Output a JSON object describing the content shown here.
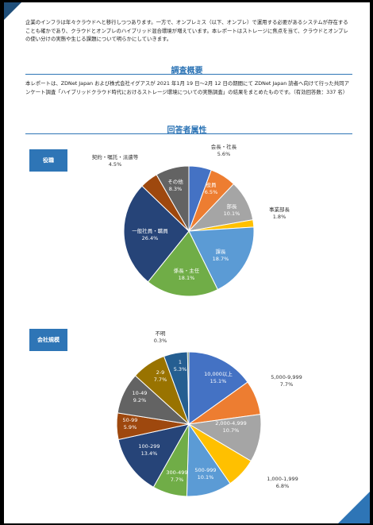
{
  "intro": "企業のインフラは年々クラウドへと移行しつつあります。一方で、オンプレミス（以下、オンプレ）で運用する必要があるシステムが存在することも確かであり、クラウドとオンプレのハイブリッド混合環境が増えています。本レポートはストレージに焦点を当て、クラウドとオンプレの使い分けの実態や生じる課題について明らかにしていきます。",
  "overview": {
    "title": "調査概要",
    "text": "本レポートは、ZDNet Japan および株式会社イグアスが 2021 年1月 19 日〜2月 12 日の期間にて ZDNet Japan 読者へ向けて行った共同アンケート調査「ハイブリッドクラウド時代におけるストレージ環境についての実態調査」の結果をまとめたものです。（有効回答数：337 名）"
  },
  "attributes": {
    "title": "回答者属性"
  },
  "charts": [
    {
      "tag": "役職"
    },
    {
      "tag": "会社規模"
    }
  ],
  "chart_data": [
    {
      "type": "pie",
      "title": "役職",
      "slices": [
        {
          "name": "会長・社長",
          "value": 5.6,
          "label": "5.6%",
          "color": "#4472C4"
        },
        {
          "name": "役員",
          "value": 6.5,
          "label": "6.5%",
          "color": "#ED7D31"
        },
        {
          "name": "部長",
          "value": 10.1,
          "label": "10.1%",
          "color": "#A5A5A5"
        },
        {
          "name": "事業部長",
          "value": 1.8,
          "label": "1.8%",
          "color": "#FFC000"
        },
        {
          "name": "課長",
          "value": 18.7,
          "label": "18.7%",
          "color": "#5B9BD5"
        },
        {
          "name": "係長・主任",
          "value": 18.1,
          "label": "18.1%",
          "color": "#70AD47"
        },
        {
          "name": "一般社員・職員",
          "value": 26.4,
          "label": "26.4%",
          "color": "#264478"
        },
        {
          "name": "契約・嘱託・派遣等",
          "value": 4.5,
          "label": "4.5%",
          "color": "#9E480E"
        },
        {
          "name": "その他",
          "value": 8.3,
          "label": "8.3%",
          "color": "#636363"
        }
      ]
    },
    {
      "type": "pie",
      "title": "会社規模",
      "slices": [
        {
          "name": "10,000以上",
          "value": 15.1,
          "label": "15.1%",
          "color": "#4472C4"
        },
        {
          "name": "5,000-9,999",
          "value": 7.7,
          "label": "7.7%",
          "color": "#ED7D31"
        },
        {
          "name": "2,000-4,999",
          "value": 10.7,
          "label": "10.7%",
          "color": "#A5A5A5"
        },
        {
          "name": "1,000-1,999",
          "value": 6.8,
          "label": "6.8%",
          "color": "#FFC000"
        },
        {
          "name": "500-999",
          "value": 10.1,
          "label": "10.1%",
          "color": "#5B9BD5"
        },
        {
          "name": "300-499",
          "value": 7.7,
          "label": "7.7%",
          "color": "#70AD47"
        },
        {
          "name": "100-299",
          "value": 13.4,
          "label": "13.4%",
          "color": "#264478"
        },
        {
          "name": "50-99",
          "value": 5.9,
          "label": "5.9%",
          "color": "#9E480E"
        },
        {
          "name": "10-49",
          "value": 9.2,
          "label": "9.2%",
          "color": "#636363"
        },
        {
          "name": "2-9",
          "value": 7.7,
          "label": "7.7%",
          "color": "#997300"
        },
        {
          "name": "1",
          "value": 5.3,
          "label": "5.3%",
          "color": "#255E91"
        },
        {
          "name": "不明",
          "value": 0.3,
          "label": "0.3%",
          "color": "#43682B"
        }
      ]
    }
  ]
}
